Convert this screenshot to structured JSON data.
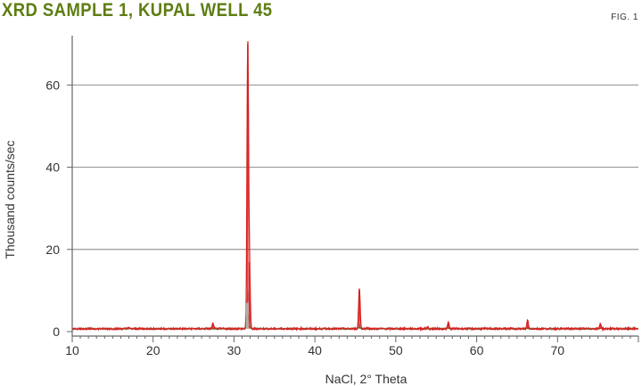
{
  "title": "XRD SAMPLE 1, KUPAL WELL 45",
  "fig_label": "FIG. 1",
  "chart_data": {
    "type": "line",
    "title": "XRD SAMPLE 1, KUPAL WELL 45",
    "xlabel": "NaCl, 2° Theta",
    "ylabel": "Thousand counts/sec",
    "xlim": [
      10,
      80
    ],
    "ylim": [
      0,
      72
    ],
    "x_ticks": [
      10,
      20,
      30,
      40,
      50,
      60,
      70
    ],
    "y_ticks": [
      0,
      20,
      40,
      60
    ],
    "grid": "horizontal",
    "colors": {
      "measured": "#d81e1e",
      "reference": "#4e7a2c",
      "halite_gray": "#a9a9a9"
    },
    "baseline": 0.7,
    "peaks": [
      {
        "x": 16.9,
        "y": 1.0
      },
      {
        "x": 27.4,
        "y": 2.0
      },
      {
        "x": 31.7,
        "y": 70.0
      },
      {
        "x": 31.9,
        "y": 17.0
      },
      {
        "x": 45.5,
        "y": 10.5
      },
      {
        "x": 46.5,
        "y": 1.0
      },
      {
        "x": 53.9,
        "y": 1.2
      },
      {
        "x": 56.5,
        "y": 2.2
      },
      {
        "x": 66.3,
        "y": 2.8
      },
      {
        "x": 75.3,
        "y": 2.0
      }
    ]
  }
}
